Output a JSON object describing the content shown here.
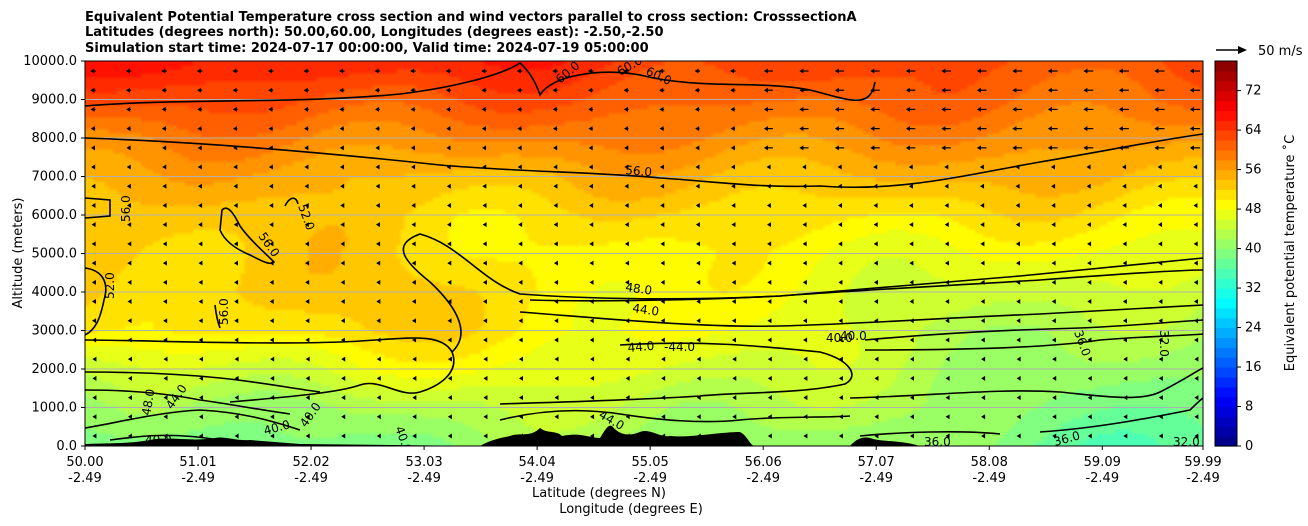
{
  "chart_data": {
    "type": "heatmap",
    "title_lines": [
      "Equivalent Potential Temperature cross section and wind vectors parallel to cross section: CrosssectionA",
      "Latitudes (degrees north): 50.00,60.00, Longitudes (degrees east): -2.50,-2.50",
      "Simulation start time: 2024-07-17 00:00:00, Valid time: 2024-07-19 05:00:00"
    ],
    "ylabel": "Altitude (meters)",
    "xlabel_lines": [
      "Latitude (degrees N)",
      "Longitude (degrees E)"
    ],
    "ylim": [
      0,
      10000
    ],
    "y_ticks": [
      0,
      1000,
      2000,
      3000,
      4000,
      5000,
      6000,
      7000,
      8000,
      9000,
      10000
    ],
    "y_tick_labels": [
      "0.0",
      "1000.0",
      "2000.0",
      "3000.0",
      "4000.0",
      "5000.0",
      "6000.0",
      "7000.0",
      "8000.0",
      "9000.0",
      "10000.0"
    ],
    "x_ticks_lat": [
      "50.00",
      "51.01",
      "52.02",
      "53.03",
      "54.04",
      "55.05",
      "56.06",
      "57.07",
      "58.08",
      "59.09",
      "59.99"
    ],
    "x_ticks_lon": [
      "-2.49",
      "-2.49",
      "-2.49",
      "-2.49",
      "-2.49",
      "-2.49",
      "-2.49",
      "-2.49",
      "-2.49",
      "-2.49",
      "-2.49"
    ],
    "xlim": [
      50.0,
      59.99
    ],
    "grid": "horizontal",
    "colorbar": {
      "label": "Equivalent potential temperature $^\\circ$C",
      "label_text": "Equivalent potential temperature ˚C",
      "ticks": [
        0,
        8,
        16,
        24,
        32,
        40,
        48,
        56,
        64,
        72
      ],
      "range": [
        0,
        78
      ],
      "colormap": "jet"
    },
    "quiver_key": "50 m/s",
    "contour_labels": [
      "60.0",
      "60.0",
      "60.0",
      "56.0",
      "56.0",
      "52.0",
      "56.0",
      "52.0",
      "56.0",
      "48.0",
      "44.0",
      "44.0",
      "-44.0",
      "40.0",
      "40.0",
      "36.0",
      "32.0",
      "48.0",
      "44.0",
      "40.0",
      "40.0",
      "40.0",
      "40.0",
      "44.0",
      "36.0",
      "36.0",
      "32.0"
    ],
    "profile_mean_values": {
      "altitudes": [
        0,
        1000,
        2000,
        3000,
        4000,
        5000,
        6000,
        7000,
        8000,
        9000,
        10000
      ],
      "south_to_north_theta_e": [
        [
          38,
          40,
          44,
          50,
          52,
          53,
          54,
          56,
          58,
          62,
          66
        ],
        [
          40,
          43,
          48,
          52,
          53,
          52,
          52,
          54,
          58,
          62,
          66
        ],
        [
          42,
          44,
          47,
          49,
          49,
          49,
          51,
          54,
          58,
          61,
          64
        ],
        [
          40,
          42,
          43,
          44,
          46,
          48,
          51,
          54,
          57,
          60,
          62
        ],
        [
          36,
          38,
          40,
          42,
          44,
          47,
          50,
          54,
          57,
          60,
          62
        ]
      ]
    }
  },
  "colors": {
    "terrain": "#000000",
    "contour": "#000000",
    "grid": "#b0b0b0"
  }
}
